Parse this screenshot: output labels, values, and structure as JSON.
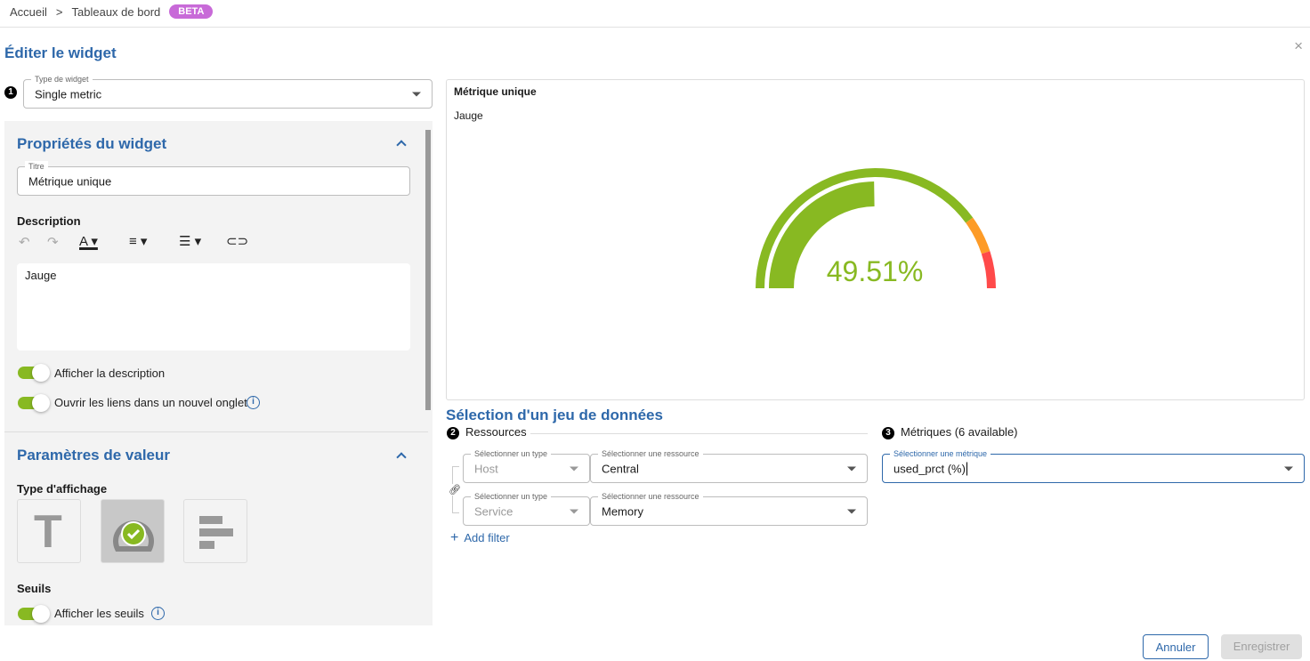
{
  "breadcrumb": {
    "items": [
      "Accueil",
      "Tableaux de bord"
    ],
    "separator": ">",
    "badge": "BETA"
  },
  "page_title": "Éditer le widget",
  "close_icon": "×",
  "widget_type": {
    "step": "1",
    "label": "Type de widget",
    "value": "Single metric"
  },
  "properties": {
    "title": "Propriétés du widget",
    "title_field": {
      "label": "Titre",
      "value": "Métrique unique"
    },
    "description_label": "Description",
    "description_text": "Jauge",
    "toolbar_icons": [
      "undo-icon",
      "redo-icon",
      "text-color-icon",
      "align-icon",
      "list-icon",
      "link-icon"
    ],
    "toggles": [
      {
        "label": "Afficher la description",
        "on": true
      },
      {
        "label": "Ouvrir les liens dans un nouvel onglet",
        "on": true
      }
    ]
  },
  "value_settings": {
    "title": "Paramètres de valeur",
    "display_type_label": "Type d'affichage",
    "display_types": [
      "text",
      "gauge",
      "bar"
    ],
    "selected_display_type": "gauge",
    "thresholds_label": "Seuils",
    "thresholds_toggle": {
      "label": "Afficher les seuils",
      "on": true
    }
  },
  "preview": {
    "title": "Métrique unique",
    "description": "Jauge",
    "value": 49.51,
    "value_text": "49.51%",
    "warning_threshold": 80,
    "critical_threshold": 90,
    "colors": {
      "ok": "#88b922",
      "warning": "#fd9b27",
      "critical": "#ff4a4a"
    }
  },
  "dataset": {
    "title": "Sélection d'un jeu de données",
    "resources": {
      "step": "2",
      "label": "Ressources",
      "rows": [
        {
          "type_label": "Sélectionner un type",
          "type": "Host",
          "resource_label": "Sélectionner une ressource",
          "resource": "Central"
        },
        {
          "type_label": "Sélectionner un type",
          "type": "Service",
          "resource_label": "Sélectionner une ressource",
          "resource": "Memory"
        }
      ],
      "add_filter": "Add filter"
    },
    "metrics": {
      "step": "3",
      "label": "Métriques (6 available)",
      "field_label": "Sélectionner une métrique",
      "value": "used_prct (%)"
    }
  },
  "footer": {
    "cancel": "Annuler",
    "save": "Enregistrer"
  }
}
